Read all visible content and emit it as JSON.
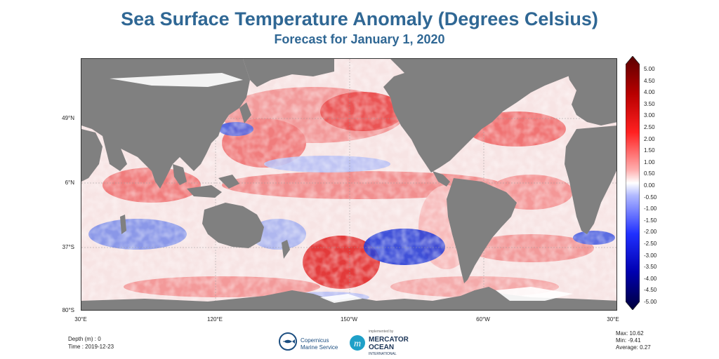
{
  "title": "Sea Surface Temperature Anomaly (Degrees Celsius)",
  "subtitle": "Forecast for January 1, 2020",
  "map": {
    "lat_labels": [
      "49°N",
      "6°N",
      "37°S",
      "80°S"
    ],
    "lon_labels": [
      "30°E",
      "120°E",
      "150°W",
      "60°W",
      "30°E"
    ],
    "colors": {
      "land": "#808080",
      "warm": "#e02020",
      "cool": "#2a3fd6",
      "neutral": "#f6eeee"
    }
  },
  "colorbar": {
    "ticks": [
      "5.00",
      "4.50",
      "4.00",
      "3.50",
      "3.00",
      "2.50",
      "2.00",
      "1.50",
      "1.00",
      "0.50",
      "0.00",
      "-0.50",
      "-1.00",
      "-1.50",
      "-2.00",
      "-2.50",
      "-3.00",
      "-3.50",
      "-4.00",
      "-4.50",
      "-5.00"
    ]
  },
  "footer": {
    "depth": "Depth (m) : 0",
    "time": "Time : 2019-12-23",
    "max": "Max: 10.62",
    "min": "Min: -9.41",
    "average": "Average:  0.27"
  },
  "logos": {
    "copernicus_line1": "Copernicus",
    "copernicus_line2": "Marine Service",
    "mercator_small": "implemented by",
    "mercator_line1": "MERCATOR",
    "mercator_line2": "OCEAN",
    "mercator_line3": "INTERNATIONAL"
  }
}
